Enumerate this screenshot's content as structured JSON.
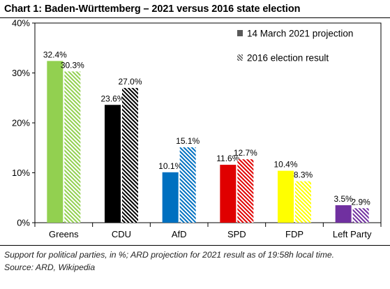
{
  "chart_data": {
    "type": "bar",
    "title": "Chart 1: Baden-Württemberg – 2021 versus 2016 state election",
    "xlabel": "",
    "ylabel": "",
    "ylim": [
      0,
      40
    ],
    "yticks": [
      "0%",
      "10%",
      "20%",
      "30%",
      "40%"
    ],
    "y_tick_values": [
      0,
      10,
      20,
      30,
      40
    ],
    "grid": false,
    "legend_position": "top-right",
    "categories": [
      "Greens",
      "CDU",
      "AfD",
      "SPD",
      "FDP",
      "Left Party"
    ],
    "colors": [
      "#92d050",
      "#000000",
      "#0070c0",
      "#e00000",
      "#ffff00",
      "#7030a0"
    ],
    "series": [
      {
        "name": "14 March 2021 projection",
        "pattern": "solid",
        "values": [
          32.4,
          23.6,
          10.1,
          11.6,
          10.4,
          3.5
        ],
        "labels": [
          "32.4%",
          "23.6%",
          "10.1%",
          "11.6%",
          "10.4%",
          "3.5%"
        ]
      },
      {
        "name": "2016 election result",
        "pattern": "hatched",
        "values": [
          30.3,
          27.0,
          15.1,
          12.7,
          8.3,
          2.9
        ],
        "labels": [
          "30.3%",
          "27.0%",
          "15.1%",
          "12.7%",
          "8.3%",
          "2.9%"
        ]
      }
    ],
    "legend_swatch_color": "#595959"
  },
  "footnote": {
    "line1": "Support for political parties, in %; ARD projection for 2021 result as of 19:58h local time.",
    "line2": "Source: ARD, Wikipedia"
  }
}
